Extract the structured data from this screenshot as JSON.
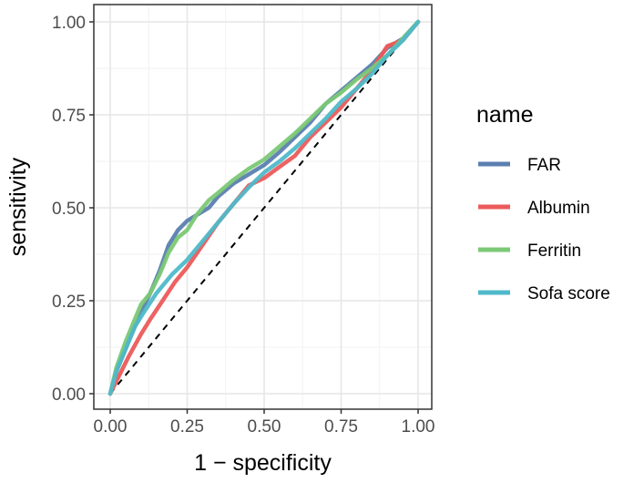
{
  "chart_data": {
    "type": "line",
    "title": "",
    "xlabel": "1 − specificity",
    "ylabel": "sensitivity",
    "xlim": [
      0,
      1
    ],
    "ylim": [
      0,
      1
    ],
    "xticks": [
      "0.00",
      "0.25",
      "0.50",
      "0.75",
      "1.00"
    ],
    "yticks": [
      "0.00",
      "0.25",
      "0.50",
      "0.75",
      "1.00"
    ],
    "xtick_values": [
      0,
      0.25,
      0.5,
      0.75,
      1.0
    ],
    "ytick_values": [
      0,
      0.25,
      0.5,
      0.75,
      1.0
    ],
    "grid": true,
    "legend": {
      "title": "name",
      "position": "right"
    },
    "reference_line": {
      "style": "dashed",
      "color": "#000000",
      "points": [
        [
          0,
          0
        ],
        [
          1,
          1
        ]
      ]
    },
    "series": [
      {
        "name": "FAR",
        "color": "#5B7FB0",
        "points": [
          [
            0,
            0
          ],
          [
            0.02,
            0.06
          ],
          [
            0.05,
            0.12
          ],
          [
            0.08,
            0.18
          ],
          [
            0.1,
            0.22
          ],
          [
            0.13,
            0.27
          ],
          [
            0.16,
            0.33
          ],
          [
            0.19,
            0.4
          ],
          [
            0.22,
            0.44
          ],
          [
            0.25,
            0.465
          ],
          [
            0.28,
            0.48
          ],
          [
            0.32,
            0.5
          ],
          [
            0.35,
            0.53
          ],
          [
            0.4,
            0.565
          ],
          [
            0.45,
            0.59
          ],
          [
            0.5,
            0.615
          ],
          [
            0.55,
            0.65
          ],
          [
            0.6,
            0.69
          ],
          [
            0.65,
            0.73
          ],
          [
            0.7,
            0.78
          ],
          [
            0.75,
            0.815
          ],
          [
            0.8,
            0.85
          ],
          [
            0.85,
            0.885
          ],
          [
            0.9,
            0.93
          ],
          [
            0.95,
            0.955
          ],
          [
            1.0,
            1.0
          ]
        ]
      },
      {
        "name": "Albumin",
        "color": "#EC5A5A",
        "points": [
          [
            0,
            0
          ],
          [
            0.03,
            0.05
          ],
          [
            0.06,
            0.1
          ],
          [
            0.1,
            0.16
          ],
          [
            0.13,
            0.2
          ],
          [
            0.17,
            0.25
          ],
          [
            0.21,
            0.3
          ],
          [
            0.25,
            0.34
          ],
          [
            0.3,
            0.4
          ],
          [
            0.35,
            0.46
          ],
          [
            0.4,
            0.51
          ],
          [
            0.45,
            0.56
          ],
          [
            0.5,
            0.58
          ],
          [
            0.55,
            0.61
          ],
          [
            0.6,
            0.64
          ],
          [
            0.65,
            0.69
          ],
          [
            0.7,
            0.73
          ],
          [
            0.75,
            0.77
          ],
          [
            0.8,
            0.82
          ],
          [
            0.85,
            0.87
          ],
          [
            0.9,
            0.935
          ],
          [
            0.95,
            0.95
          ],
          [
            1.0,
            1.0
          ]
        ]
      },
      {
        "name": "Ferritin",
        "color": "#7BC875",
        "points": [
          [
            0,
            0
          ],
          [
            0.02,
            0.07
          ],
          [
            0.05,
            0.14
          ],
          [
            0.08,
            0.2
          ],
          [
            0.1,
            0.24
          ],
          [
            0.13,
            0.27
          ],
          [
            0.16,
            0.32
          ],
          [
            0.19,
            0.38
          ],
          [
            0.22,
            0.42
          ],
          [
            0.25,
            0.44
          ],
          [
            0.28,
            0.48
          ],
          [
            0.32,
            0.52
          ],
          [
            0.35,
            0.54
          ],
          [
            0.4,
            0.575
          ],
          [
            0.45,
            0.605
          ],
          [
            0.5,
            0.63
          ],
          [
            0.55,
            0.665
          ],
          [
            0.6,
            0.7
          ],
          [
            0.65,
            0.74
          ],
          [
            0.7,
            0.78
          ],
          [
            0.75,
            0.81
          ],
          [
            0.8,
            0.845
          ],
          [
            0.85,
            0.875
          ],
          [
            0.9,
            0.91
          ],
          [
            0.95,
            0.955
          ],
          [
            1.0,
            1.0
          ]
        ]
      },
      {
        "name": "Sofa score",
        "color": "#4FB9C9",
        "points": [
          [
            0,
            0
          ],
          [
            0.02,
            0.06
          ],
          [
            0.05,
            0.12
          ],
          [
            0.08,
            0.18
          ],
          [
            0.11,
            0.22
          ],
          [
            0.15,
            0.27
          ],
          [
            0.2,
            0.32
          ],
          [
            0.25,
            0.36
          ],
          [
            0.3,
            0.41
          ],
          [
            0.35,
            0.46
          ],
          [
            0.4,
            0.51
          ],
          [
            0.45,
            0.555
          ],
          [
            0.5,
            0.595
          ],
          [
            0.55,
            0.625
          ],
          [
            0.6,
            0.66
          ],
          [
            0.65,
            0.7
          ],
          [
            0.7,
            0.74
          ],
          [
            0.75,
            0.785
          ],
          [
            0.8,
            0.82
          ],
          [
            0.85,
            0.86
          ],
          [
            0.9,
            0.91
          ],
          [
            0.95,
            0.95
          ],
          [
            1.0,
            1.0
          ]
        ]
      }
    ]
  }
}
